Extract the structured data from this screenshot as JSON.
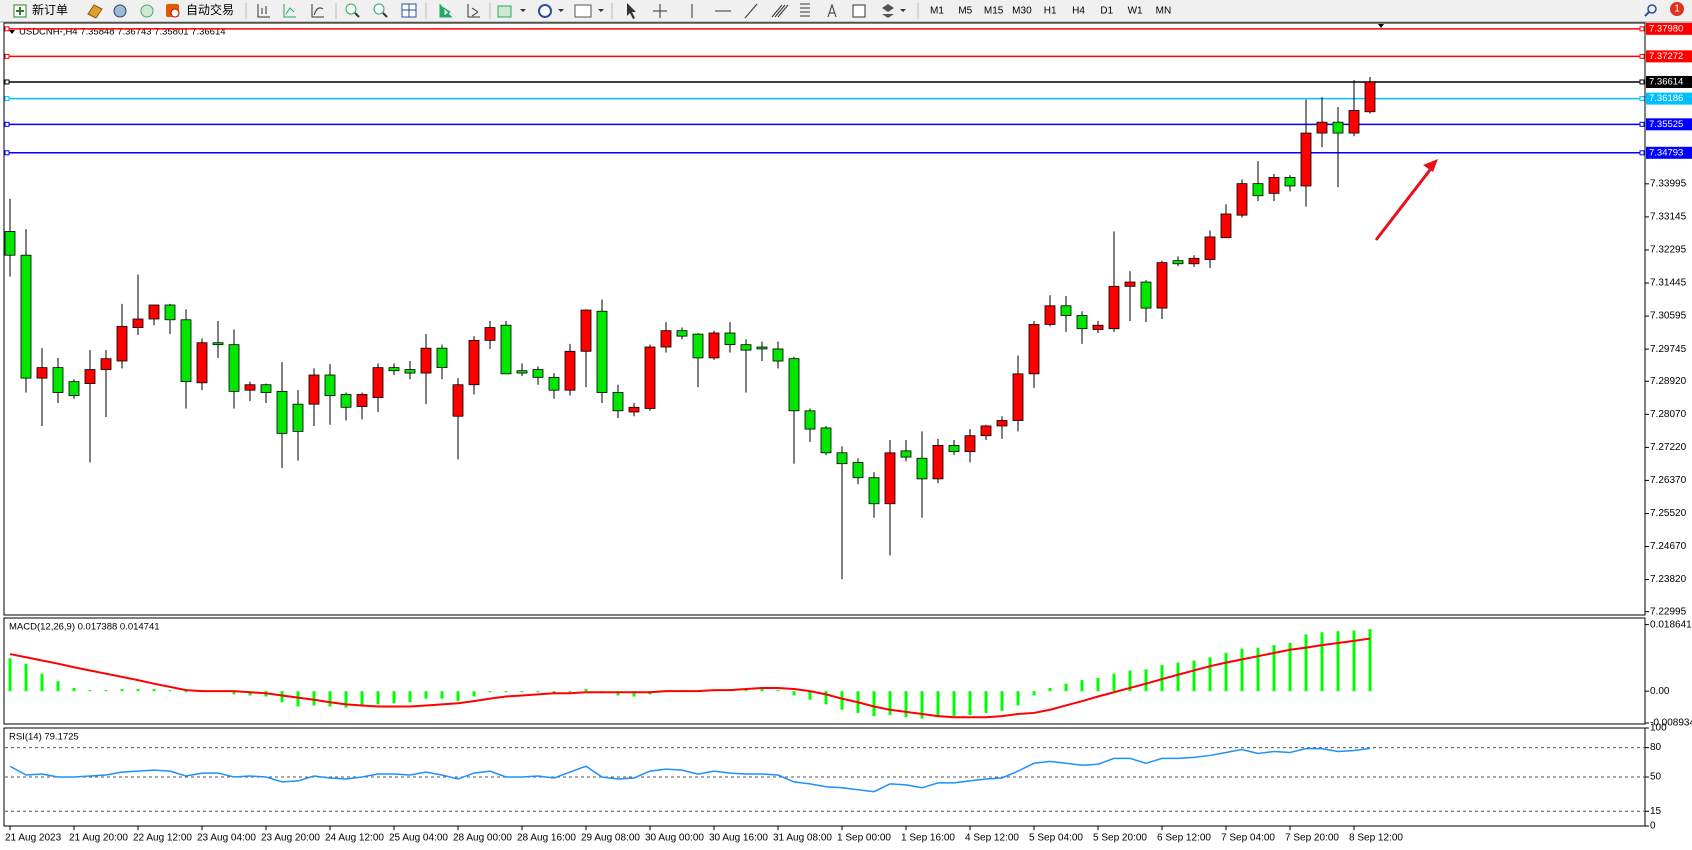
{
  "toolbar": {
    "new_order": "新订单",
    "auto_trading": "自动交易",
    "timeframes": [
      "M1",
      "M5",
      "M15",
      "M30",
      "H1",
      "H4",
      "D1",
      "W1",
      "MN"
    ],
    "badge": "1"
  },
  "chart_data": [
    {
      "type": "candlestick",
      "title": "USDCNH-,H4  7.35848 7.36743 7.35801 7.36614",
      "categories": [
        "21 Aug 2023",
        null,
        null,
        null,
        "21 Aug 20:00",
        null,
        null,
        null,
        "22 Aug 12:00",
        null,
        null,
        null,
        "23 Aug 04:00",
        null,
        null,
        null,
        "23 Aug 20:00",
        null,
        null,
        null,
        "24 Aug 12:00",
        null,
        null,
        null,
        "25 Aug 04:00",
        null,
        null,
        null,
        "28 Aug 00:00",
        null,
        null,
        null,
        "28 Aug 16:00",
        null,
        null,
        null,
        "29 Aug 08:00",
        null,
        null,
        null,
        "30 Aug 00:00",
        null,
        null,
        null,
        "30 Aug 16:00",
        null,
        null,
        null,
        "31 Aug 08:00",
        null,
        null,
        null,
        "1 Sep 00:00",
        null,
        null,
        null,
        "1 Sep 16:00",
        null,
        null,
        null,
        "4 Sep 12:00",
        null,
        null,
        null,
        "5 Sep 04:00",
        null,
        null,
        null,
        "5 Sep 20:00",
        null,
        null,
        null,
        "6 Sep 12:00",
        null,
        null,
        null,
        "7 Sep 04:00",
        null,
        null,
        null,
        "7 Sep 20:00",
        null,
        null,
        null,
        "8 Sep 12:00",
        null
      ],
      "open": [
        7.3277,
        7.3216,
        7.29,
        7.2927,
        7.2891,
        7.2886,
        7.2922,
        7.2944,
        7.303,
        7.3052,
        7.3088,
        7.305,
        7.2888,
        7.2991,
        7.2986,
        7.2869,
        7.2883,
        7.2866,
        7.2833,
        7.2833,
        7.2908,
        7.2858,
        7.2827,
        7.285,
        7.2927,
        7.2922,
        7.2913,
        7.2977,
        7.2802,
        7.2883,
        7.2997,
        7.3036,
        7.2919,
        7.2922,
        7.2902,
        7.2869,
        7.2969,
        7.3072,
        7.2863,
        7.2813,
        7.2822,
        7.298,
        7.3022,
        7.3013,
        7.2952,
        7.3016,
        7.2986,
        7.298,
        7.2975,
        7.295,
        7.2816,
        7.2772,
        7.2708,
        7.2683,
        7.2644,
        7.2577,
        7.2713,
        7.2694,
        7.2641,
        7.2727,
        7.2711,
        7.2752,
        7.2777,
        7.2791,
        7.2911,
        7.3038,
        7.3086,
        7.3061,
        7.3025,
        7.3027,
        7.3136,
        7.3147,
        7.308,
        7.3202,
        7.3194,
        7.3205,
        7.3261,
        7.3319,
        7.34,
        7.3375,
        7.3416,
        7.3394,
        7.353,
        7.3558,
        7.353,
        7.35848
      ],
      "high": [
        7.3361,
        7.3283,
        7.2977,
        7.2952,
        7.2897,
        7.2972,
        7.2972,
        7.3091,
        7.3166,
        7.3088,
        7.3091,
        7.3077,
        7.3002,
        7.3047,
        7.3025,
        7.2891,
        7.2886,
        7.2941,
        7.2869,
        7.2925,
        7.2936,
        7.2863,
        7.2863,
        7.2938,
        7.2938,
        7.2944,
        7.3013,
        7.2986,
        7.29,
        7.3008,
        7.3047,
        7.3047,
        7.2938,
        7.293,
        7.2913,
        7.2988,
        7.3077,
        7.3102,
        7.2883,
        7.2836,
        7.2986,
        7.3044,
        7.303,
        7.3016,
        7.3022,
        7.3044,
        7.3,
        7.2994,
        7.2994,
        7.2955,
        7.2822,
        7.2777,
        7.2725,
        7.2694,
        7.2658,
        7.2741,
        7.2741,
        7.2763,
        7.2744,
        7.2741,
        7.2769,
        7.278,
        7.2802,
        7.2958,
        7.3047,
        7.3113,
        7.3111,
        7.3072,
        7.3047,
        7.3277,
        7.3175,
        7.3152,
        7.3202,
        7.3213,
        7.3216,
        7.328,
        7.3347,
        7.3411,
        7.3458,
        7.3425,
        7.3422,
        7.3616,
        7.3622,
        7.3597,
        7.3666,
        7.36743
      ],
      "low": [
        7.3161,
        7.2863,
        7.2777,
        7.2836,
        7.2847,
        7.2683,
        7.28,
        7.2925,
        7.3011,
        7.3036,
        7.3013,
        7.2822,
        7.2869,
        7.2952,
        7.2822,
        7.2841,
        7.2836,
        7.2669,
        7.2688,
        7.2777,
        7.278,
        7.2791,
        7.2794,
        7.2813,
        7.2908,
        7.2897,
        7.2833,
        7.2897,
        7.2691,
        7.2858,
        7.2975,
        7.2911,
        7.2905,
        7.2883,
        7.2847,
        7.2855,
        7.2877,
        7.2836,
        7.2797,
        7.2802,
        7.2816,
        7.2966,
        7.3,
        7.2877,
        7.2947,
        7.2966,
        7.2863,
        7.2944,
        7.2925,
        7.268,
        7.2736,
        7.2702,
        7.2383,
        7.2627,
        7.2541,
        7.2444,
        7.2686,
        7.2541,
        7.263,
        7.2702,
        7.2683,
        7.2741,
        7.2744,
        7.2763,
        7.2875,
        7.3033,
        7.3019,
        7.2988,
        7.3016,
        7.3019,
        7.3047,
        7.3044,
        7.3052,
        7.3188,
        7.3186,
        7.3183,
        7.3261,
        7.3313,
        7.3355,
        7.3355,
        7.338,
        7.3341,
        7.3494,
        7.3391,
        7.3522,
        7.35801
      ],
      "close": [
        7.3216,
        7.29,
        7.2927,
        7.2863,
        7.2855,
        7.2922,
        7.295,
        7.3033,
        7.3052,
        7.3088,
        7.305,
        7.2891,
        7.2991,
        7.2986,
        7.2866,
        7.2883,
        7.2863,
        7.2758,
        7.2763,
        7.2908,
        7.2855,
        7.2825,
        7.2858,
        7.2927,
        7.2919,
        7.2913,
        7.2977,
        7.2927,
        7.2883,
        7.2997,
        7.303,
        7.2911,
        7.2913,
        7.2902,
        7.2869,
        7.2969,
        7.3075,
        7.2863,
        7.2816,
        7.2825,
        7.298,
        7.3022,
        7.3008,
        7.2952,
        7.3016,
        7.2986,
        7.2972,
        7.2975,
        7.2944,
        7.2816,
        7.2769,
        7.2708,
        7.268,
        7.2644,
        7.2577,
        7.2708,
        7.2697,
        7.2641,
        7.2727,
        7.2711,
        7.2752,
        7.2777,
        7.2791,
        7.2911,
        7.3038,
        7.3086,
        7.3061,
        7.3027,
        7.3036,
        7.3136,
        7.3147,
        7.308,
        7.3197,
        7.3194,
        7.3208,
        7.3263,
        7.3322,
        7.34,
        7.3369,
        7.3416,
        7.3394,
        7.353,
        7.3558,
        7.353,
        7.3588,
        7.36614
      ],
      "up_color": "#ff0000",
      "down_color": "#00e600",
      "ylim": [
        7.2291,
        7.3813
      ],
      "yticks": [
        7.22995,
        {
          "value": 7.2382,
          "label": "7.23820"
        },
        {
          "value": 7.2467,
          "label": "7.24670"
        },
        {
          "value": 7.2552,
          "label": "7.25520"
        },
        {
          "value": 7.2637,
          "label": "7.26370"
        },
        {
          "value": 7.2722,
          "label": "7.27220"
        },
        {
          "value": 7.2807,
          "label": "7.28070"
        },
        {
          "value": 7.2892,
          "label": "7.28920"
        },
        7.29745,
        7.30595,
        7.31445,
        7.32295,
        7.33145,
        7.33995
      ],
      "levels": [
        {
          "value": 7.3798,
          "label": "7.37980",
          "color": "#ff0000"
        },
        {
          "value": 7.37272,
          "color": "#ff0000"
        },
        {
          "value": 7.36614,
          "color": "#000000"
        },
        {
          "value": 7.36186,
          "color": "#00bfff"
        },
        {
          "value": 7.35525,
          "color": "#0000ff"
        },
        {
          "value": 7.34793,
          "color": "#0000ff"
        }
      ]
    },
    {
      "type": "macd",
      "title": "MACD(12,26,9) 0.017388 0.014741",
      "histogram": {
        "color": "#00ff00",
        "values": [
          0.0092,
          0.0077,
          0.0049,
          0.0028,
          0.0009,
          0.0003,
          0.0003,
          0.0006,
          0.0006,
          0.0006,
          0.0003,
          -0.0003,
          0,
          0,
          -0.0009,
          -0.0012,
          -0.0015,
          -0.0031,
          -0.0043,
          -0.004,
          -0.0043,
          -0.0046,
          -0.0043,
          -0.0037,
          -0.0034,
          -0.0031,
          -0.0021,
          -0.0021,
          -0.0028,
          -0.0015,
          -0.0003,
          -0.0003,
          -0.0003,
          -0.0003,
          -0.0006,
          -0.0003,
          0.0006,
          -0.0006,
          -0.0012,
          -0.0015,
          -0.0009,
          -0.0003,
          0.0003,
          0,
          0.0003,
          0.0006,
          0.0006,
          0.0006,
          0.0003,
          -0.0012,
          -0.0024,
          -0.0037,
          -0.0052,
          -0.0061,
          -0.007,
          -0.0067,
          -0.0073,
          -0.0077,
          -0.0073,
          -0.007,
          -0.0067,
          -0.0061,
          -0.0055,
          -0.004,
          -0.0012,
          0.0009,
          0.0021,
          0.0031,
          0.0037,
          0.0049,
          0.0058,
          0.0061,
          0.0073,
          0.008,
          0.0086,
          0.0095,
          0.0107,
          0.0119,
          0.0122,
          0.0129,
          0.0135,
          0.0159,
          0.0165,
          0.0168,
          0.017,
          0.017388
        ]
      },
      "signal": {
        "color": "#ff0000",
        "values": [
          0.0104,
          0.0095,
          0.0086,
          0.0077,
          0.0067,
          0.0058,
          0.0049,
          0.004,
          0.0031,
          0.0021,
          0.0012,
          0.0003,
          0,
          0,
          0,
          -0.0003,
          -0.0006,
          -0.0012,
          -0.0018,
          -0.0024,
          -0.0031,
          -0.0037,
          -0.004,
          -0.0043,
          -0.0043,
          -0.0043,
          -0.004,
          -0.0037,
          -0.0034,
          -0.0028,
          -0.0021,
          -0.0015,
          -0.0012,
          -0.0009,
          -0.0006,
          -0.0006,
          -0.0003,
          -0.0003,
          -0.0003,
          -0.0003,
          -0.0003,
          0,
          0,
          0,
          0.0003,
          0.0003,
          0.0006,
          0.0009,
          0.0009,
          0.0006,
          0,
          -0.0009,
          -0.0021,
          -0.0031,
          -0.0043,
          -0.0052,
          -0.0058,
          -0.0064,
          -0.007,
          -0.0073,
          -0.0073,
          -0.0073,
          -0.007,
          -0.0064,
          -0.0061,
          -0.0052,
          -0.004,
          -0.0028,
          -0.0015,
          -0.0003,
          0.0009,
          0.0021,
          0.0034,
          0.0046,
          0.0058,
          0.007,
          0.008,
          0.0089,
          0.0098,
          0.0107,
          0.0116,
          0.0122,
          0.0129,
          0.0135,
          0.0141,
          0.014741
        ]
      },
      "ylim": [
        -0.0092,
        0.0205
      ],
      "yticks": [
        -0.008934,
        {
          "value": 0,
          "label": "0.00"
        },
        0.018641
      ]
    },
    {
      "type": "line",
      "title": "RSI(14) 79.1725",
      "color": "#1e90ff",
      "values": [
        61,
        52,
        53,
        50,
        50,
        51,
        52,
        55,
        56,
        57,
        56,
        51,
        54,
        54,
        50,
        51,
        50,
        45,
        46,
        51,
        49,
        48,
        50,
        53,
        53,
        52,
        55,
        52,
        48,
        54,
        56,
        50,
        50,
        51,
        49,
        55,
        61,
        50,
        48,
        49,
        56,
        58,
        57,
        53,
        56,
        54,
        53,
        53,
        52,
        45,
        43,
        40,
        39,
        37,
        35,
        43,
        42,
        39,
        44,
        44,
        46,
        48,
        49,
        56,
        64,
        66,
        64,
        62,
        63,
        69,
        69,
        64,
        69,
        69,
        70,
        72,
        75,
        78,
        74,
        76,
        75,
        79,
        79,
        76,
        77,
        79.1725
      ],
      "ylim": [
        0,
        100
      ],
      "yticks": [
        0,
        15,
        50,
        80,
        100
      ],
      "levels": [
        15,
        50,
        80
      ]
    }
  ]
}
